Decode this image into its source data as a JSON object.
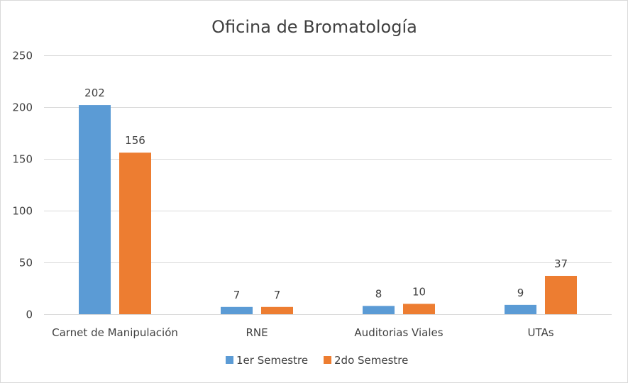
{
  "chart_data": {
    "type": "bar",
    "title": "Oficina de Bromatología",
    "categories": [
      "Carnet de Manipulación",
      "RNE",
      "Auditorias Viales",
      "UTAs"
    ],
    "series": [
      {
        "name": "1er Semestre",
        "values": [
          202,
          7,
          8,
          9
        ],
        "color": "#5b9bd5"
      },
      {
        "name": "2do Semestre",
        "values": [
          156,
          7,
          10,
          37
        ],
        "color": "#ed7d31"
      }
    ],
    "ylim": [
      0,
      250
    ],
    "yticks": [
      0,
      50,
      100,
      150,
      200,
      250
    ],
    "grid": true,
    "legend": "bottom",
    "data_labels": true
  }
}
